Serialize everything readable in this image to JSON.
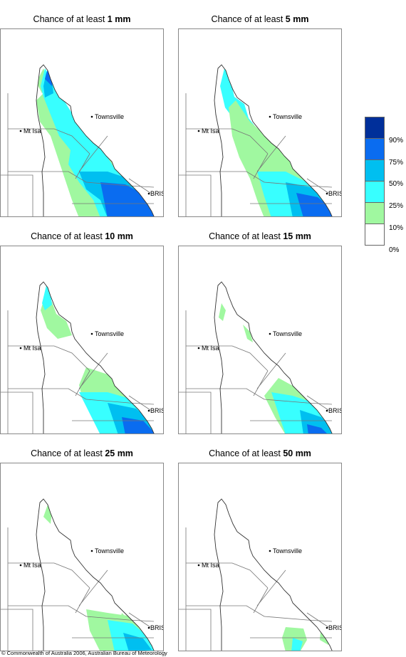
{
  "titles": [
    {
      "prefix": "Chance of at least ",
      "value": "1 mm"
    },
    {
      "prefix": "Chance of at least ",
      "value": "5 mm"
    },
    {
      "prefix": "Chance of at least ",
      "value": "10 mm"
    },
    {
      "prefix": "Chance of at least ",
      "value": "15 mm"
    },
    {
      "prefix": "Chance of at least ",
      "value": "25 mm"
    },
    {
      "prefix": "Chance of at least ",
      "value": "50 mm"
    }
  ],
  "places": {
    "townsville": "Townsville",
    "mt_isa": "Mt Isa",
    "bris": "BRIS"
  },
  "legend": {
    "labels": [
      "90%",
      "75%",
      "50%",
      "25%",
      "10%",
      "0%"
    ],
    "colors": [
      "#002f9a",
      "#0a6cf0",
      "#00bff0",
      "#38ffff",
      "#a0f8a0",
      "#ffffff"
    ]
  },
  "copyright": "© Commonwealth of Australia 2006, Australian Bureau of Meteorology"
}
